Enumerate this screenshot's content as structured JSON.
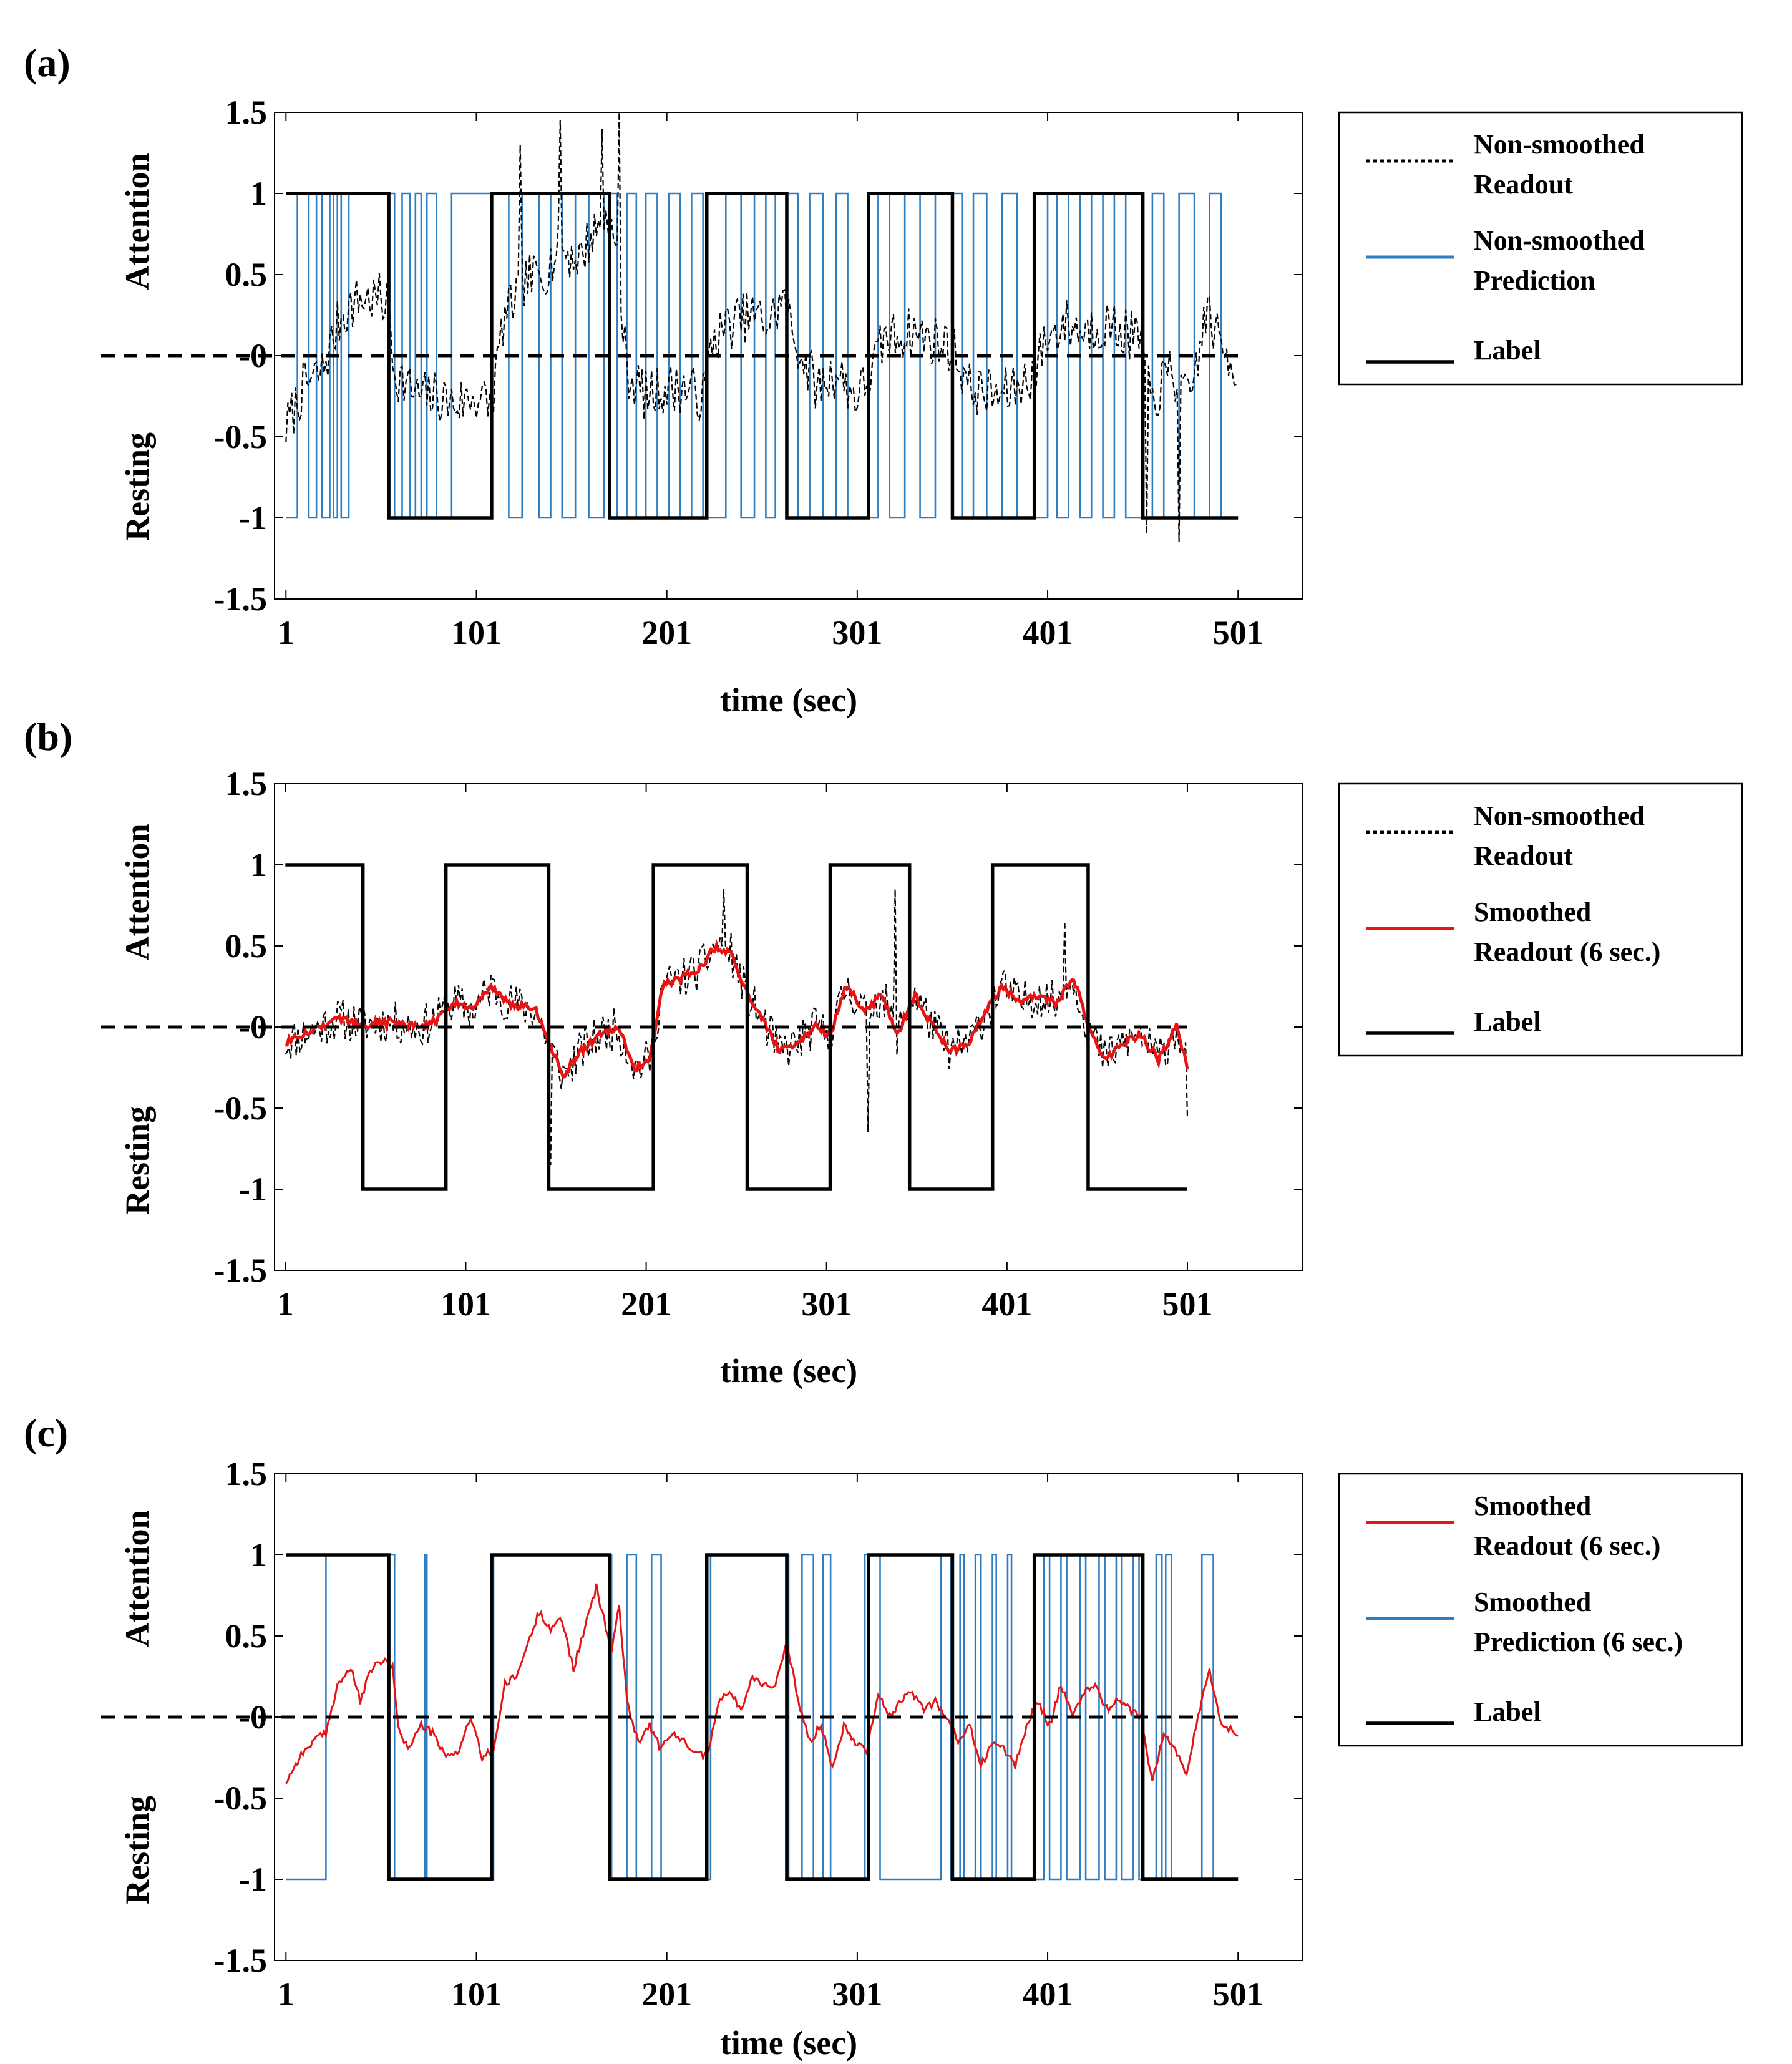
{
  "chart_data": [
    {
      "panel": "(a)",
      "type": "line",
      "xlabel": "time (sec)",
      "ylabel_top": "Attention",
      "ylabel_bottom": "Resting",
      "xlim": [
        -5,
        535
      ],
      "ylim": [
        -1.5,
        1.5
      ],
      "xticks": [
        1,
        101,
        201,
        301,
        401,
        501
      ],
      "yticks": [
        1.5,
        1,
        0.5,
        0,
        -0.5,
        -1,
        -1.5
      ],
      "ytick_labels": [
        "1.5",
        "1",
        "0.5",
        "-0",
        "-0.5",
        "-1",
        "-1.5"
      ],
      "label_switch_times": [
        55,
        109,
        171,
        222,
        264,
        307,
        351,
        394,
        451
      ],
      "label_start": 1,
      "prediction_switch_times": [
        7,
        13,
        17,
        20,
        24,
        26,
        28,
        30,
        34,
        58,
        62,
        66,
        69,
        72,
        75,
        80,
        88,
        118,
        125,
        134,
        140,
        146,
        153,
        160,
        168,
        175,
        180,
        185,
        190,
        196,
        202,
        208,
        214,
        220,
        232,
        240,
        247,
        253,
        258,
        270,
        276,
        283,
        290,
        296,
        312,
        318,
        326,
        334,
        342,
        356,
        362,
        369,
        377,
        385,
        401,
        406,
        412,
        418,
        424,
        430,
        436,
        442,
        456,
        462,
        470,
        478,
        486,
        492
      ],
      "prediction_start": -1,
      "readout_seed": 7,
      "readout_noise": 0.16,
      "readout_anchors": [
        [
          1,
          -0.45
        ],
        [
          10,
          -0.2
        ],
        [
          20,
          -0.1
        ],
        [
          30,
          0.25
        ],
        [
          40,
          0.35
        ],
        [
          50,
          0.35
        ],
        [
          55,
          0.3
        ],
        [
          58,
          -0.1
        ],
        [
          70,
          -0.25
        ],
        [
          80,
          -0.25
        ],
        [
          90,
          -0.3
        ],
        [
          100,
          -0.25
        ],
        [
          109,
          -0.3
        ],
        [
          115,
          0.2
        ],
        [
          125,
          0.45
        ],
        [
          135,
          0.5
        ],
        [
          145,
          0.65
        ],
        [
          155,
          0.6
        ],
        [
          162,
          0.75
        ],
        [
          170,
          0.85
        ],
        [
          175,
          0.6
        ],
        [
          180,
          -0.1
        ],
        [
          190,
          -0.25
        ],
        [
          200,
          -0.2
        ],
        [
          210,
          -0.2
        ],
        [
          220,
          -0.25
        ],
        [
          225,
          0.1
        ],
        [
          235,
          0.2
        ],
        [
          245,
          0.25
        ],
        [
          255,
          0.2
        ],
        [
          262,
          0.35
        ],
        [
          268,
          0.1
        ],
        [
          280,
          -0.2
        ],
        [
          290,
          -0.1
        ],
        [
          300,
          -0.25
        ],
        [
          307,
          -0.15
        ],
        [
          315,
          0.1
        ],
        [
          330,
          0.15
        ],
        [
          340,
          0.1
        ],
        [
          351,
          0.05
        ],
        [
          360,
          -0.2
        ],
        [
          375,
          -0.25
        ],
        [
          385,
          -0.2
        ],
        [
          394,
          -0.1
        ],
        [
          400,
          0.1
        ],
        [
          410,
          0.2
        ],
        [
          420,
          0.15
        ],
        [
          430,
          0.2
        ],
        [
          440,
          0.15
        ],
        [
          450,
          0.1
        ],
        [
          455,
          -0.3
        ],
        [
          465,
          -0.1
        ],
        [
          475,
          -0.3
        ],
        [
          485,
          0.3
        ],
        [
          490,
          0.1
        ],
        [
          501,
          -0.1
        ]
      ],
      "readout_spikes": [
        [
          124,
          1.3
        ],
        [
          145,
          1.45
        ],
        [
          167,
          1.4
        ],
        [
          176,
          1.5
        ],
        [
          453,
          -1.1
        ],
        [
          470,
          -1.15
        ]
      ],
      "legend": [
        {
          "style": "dotted-black",
          "line1": "Non-smoothed",
          "line2": "Readout"
        },
        {
          "style": "solid-blue",
          "line1": "Non-smoothed",
          "line2": "Prediction"
        },
        {
          "style": "solid-black",
          "line1": "Label",
          "line2": ""
        }
      ]
    },
    {
      "panel": "(b)",
      "type": "line",
      "xlabel": "time (sec)",
      "ylabel_top": "Attention",
      "ylabel_bottom": "Resting",
      "xlim": [
        -5,
        565
      ],
      "ylim": [
        -1.5,
        1.5
      ],
      "xticks": [
        1,
        101,
        201,
        301,
        401,
        501
      ],
      "yticks": [
        1.5,
        1,
        0.5,
        0,
        -0.5,
        -1,
        -1.5
      ],
      "ytick_labels": [
        "1.5",
        "1",
        "0.5",
        "-0",
        "-0.5",
        "-1",
        "-1.5"
      ],
      "label_switch_times": [
        44,
        90,
        147,
        205,
        257,
        303,
        347,
        393,
        446
      ],
      "label_start": 1,
      "readout_seed": 11,
      "readout_noise": 0.13,
      "smooth_anchors": [
        [
          1,
          -0.1
        ],
        [
          10,
          -0.05
        ],
        [
          20,
          0.0
        ],
        [
          30,
          0.05
        ],
        [
          45,
          0.02
        ],
        [
          60,
          0.03
        ],
        [
          75,
          0.0
        ],
        [
          85,
          0.05
        ],
        [
          95,
          0.15
        ],
        [
          105,
          0.1
        ],
        [
          115,
          0.25
        ],
        [
          125,
          0.15
        ],
        [
          140,
          0.1
        ],
        [
          147,
          -0.1
        ],
        [
          155,
          -0.3
        ],
        [
          165,
          -0.15
        ],
        [
          175,
          -0.05
        ],
        [
          185,
          0.0
        ],
        [
          195,
          -0.25
        ],
        [
          203,
          -0.2
        ],
        [
          210,
          0.25
        ],
        [
          220,
          0.3
        ],
        [
          230,
          0.35
        ],
        [
          240,
          0.5
        ],
        [
          248,
          0.45
        ],
        [
          257,
          0.2
        ],
        [
          265,
          0.05
        ],
        [
          275,
          -0.15
        ],
        [
          285,
          -0.1
        ],
        [
          295,
          0.0
        ],
        [
          303,
          -0.05
        ],
        [
          312,
          0.25
        ],
        [
          322,
          0.1
        ],
        [
          332,
          0.2
        ],
        [
          340,
          -0.05
        ],
        [
          350,
          0.2
        ],
        [
          360,
          0.0
        ],
        [
          370,
          -0.15
        ],
        [
          380,
          -0.1
        ],
        [
          390,
          0.1
        ],
        [
          398,
          0.25
        ],
        [
          408,
          0.15
        ],
        [
          418,
          0.2
        ],
        [
          428,
          0.15
        ],
        [
          438,
          0.3
        ],
        [
          446,
          0.0
        ],
        [
          455,
          -0.2
        ],
        [
          465,
          -0.1
        ],
        [
          475,
          -0.05
        ],
        [
          485,
          -0.2
        ],
        [
          495,
          0.0
        ],
        [
          501,
          -0.25
        ]
      ],
      "readout_spikes": [
        [
          148,
          -0.85
        ],
        [
          244,
          0.85
        ],
        [
          339,
          0.85
        ],
        [
          433,
          0.65
        ],
        [
          324,
          -0.65
        ],
        [
          501,
          -0.55
        ]
      ],
      "legend": [
        {
          "style": "dotted-black",
          "line1": "Non-smoothed",
          "line2": "Readout"
        },
        {
          "style": "solid-red",
          "line1": "Smoothed",
          "line2": "Readout (6 sec.)"
        },
        {
          "style": "solid-black",
          "line1": "Label",
          "line2": ""
        }
      ]
    },
    {
      "panel": "(c)",
      "type": "line",
      "xlabel": "time (sec)",
      "ylabel_top": "Attention",
      "ylabel_bottom": "Resting",
      "xlim": [
        -5,
        535
      ],
      "ylim": [
        -1.5,
        1.5
      ],
      "xticks": [
        1,
        101,
        201,
        301,
        401,
        501
      ],
      "yticks": [
        1.5,
        1,
        0.5,
        0,
        -0.5,
        -1,
        -1.5
      ],
      "ytick_labels": [
        "1.5",
        "1",
        "0.5",
        "-0",
        "-0.5",
        "-1",
        "-1.5"
      ],
      "label_switch_times": [
        55,
        109,
        171,
        222,
        264,
        307,
        351,
        394,
        451
      ],
      "label_start": 1,
      "prediction_switch_times": [
        22,
        58,
        74,
        75,
        110,
        172,
        180,
        185,
        193,
        198,
        224,
        265,
        272,
        278,
        283,
        287,
        305,
        313,
        345,
        350,
        355,
        357,
        363,
        366,
        372,
        374,
        380,
        382,
        399,
        402,
        408,
        411,
        418,
        421,
        428,
        431,
        437,
        440,
        446,
        449,
        458,
        461,
        463,
        466,
        482,
        488
      ],
      "prediction_start": -1,
      "smooth_anchors": [
        [
          1,
          -0.4
        ],
        [
          8,
          -0.25
        ],
        [
          15,
          -0.15
        ],
        [
          22,
          -0.1
        ],
        [
          28,
          0.2
        ],
        [
          35,
          0.3
        ],
        [
          40,
          0.1
        ],
        [
          46,
          0.3
        ],
        [
          52,
          0.35
        ],
        [
          57,
          0.3
        ],
        [
          60,
          -0.05
        ],
        [
          65,
          -0.2
        ],
        [
          72,
          -0.05
        ],
        [
          78,
          -0.1
        ],
        [
          85,
          -0.25
        ],
        [
          92,
          -0.2
        ],
        [
          98,
          0.0
        ],
        [
          104,
          -0.25
        ],
        [
          110,
          -0.2
        ],
        [
          116,
          0.2
        ],
        [
          122,
          0.25
        ],
        [
          128,
          0.45
        ],
        [
          134,
          0.65
        ],
        [
          140,
          0.55
        ],
        [
          146,
          0.6
        ],
        [
          152,
          0.3
        ],
        [
          158,
          0.55
        ],
        [
          164,
          0.8
        ],
        [
          168,
          0.6
        ],
        [
          172,
          0.4
        ],
        [
          176,
          0.7
        ],
        [
          180,
          0.1
        ],
        [
          186,
          -0.15
        ],
        [
          192,
          -0.05
        ],
        [
          198,
          -0.2
        ],
        [
          204,
          -0.1
        ],
        [
          210,
          -0.15
        ],
        [
          216,
          -0.2
        ],
        [
          222,
          -0.25
        ],
        [
          228,
          0.1
        ],
        [
          234,
          0.15
        ],
        [
          240,
          0.05
        ],
        [
          246,
          0.25
        ],
        [
          252,
          0.2
        ],
        [
          258,
          0.2
        ],
        [
          264,
          0.45
        ],
        [
          270,
          0.1
        ],
        [
          276,
          -0.15
        ],
        [
          282,
          -0.05
        ],
        [
          288,
          -0.3
        ],
        [
          294,
          -0.05
        ],
        [
          300,
          -0.15
        ],
        [
          306,
          -0.2
        ],
        [
          312,
          0.15
        ],
        [
          318,
          0.0
        ],
        [
          324,
          0.1
        ],
        [
          330,
          0.15
        ],
        [
          336,
          0.05
        ],
        [
          342,
          0.1
        ],
        [
          348,
          0.0
        ],
        [
          354,
          -0.15
        ],
        [
          360,
          -0.05
        ],
        [
          366,
          -0.3
        ],
        [
          372,
          -0.15
        ],
        [
          378,
          -0.2
        ],
        [
          384,
          -0.3
        ],
        [
          390,
          -0.05
        ],
        [
          396,
          0.1
        ],
        [
          402,
          -0.05
        ],
        [
          408,
          0.2
        ],
        [
          414,
          0.0
        ],
        [
          420,
          0.15
        ],
        [
          426,
          0.2
        ],
        [
          432,
          0.05
        ],
        [
          438,
          0.1
        ],
        [
          444,
          0.05
        ],
        [
          450,
          0.0
        ],
        [
          456,
          -0.4
        ],
        [
          462,
          -0.1
        ],
        [
          468,
          -0.2
        ],
        [
          474,
          -0.35
        ],
        [
          480,
          0.0
        ],
        [
          486,
          0.3
        ],
        [
          492,
          -0.05
        ],
        [
          501,
          -0.1
        ]
      ],
      "legend": [
        {
          "style": "solid-red",
          "line1": "Smoothed",
          "line2": "Readout (6 sec.)"
        },
        {
          "style": "solid-blue",
          "line1": "Smoothed",
          "line2": "Prediction (6 sec.)"
        },
        {
          "style": "solid-black",
          "line1": "Label",
          "line2": ""
        }
      ]
    }
  ],
  "colors": {
    "label": "#000000",
    "readout": "#000000",
    "prediction": "#2f7ec2",
    "smoothed": "#e61414",
    "zero_line": "#000000"
  }
}
